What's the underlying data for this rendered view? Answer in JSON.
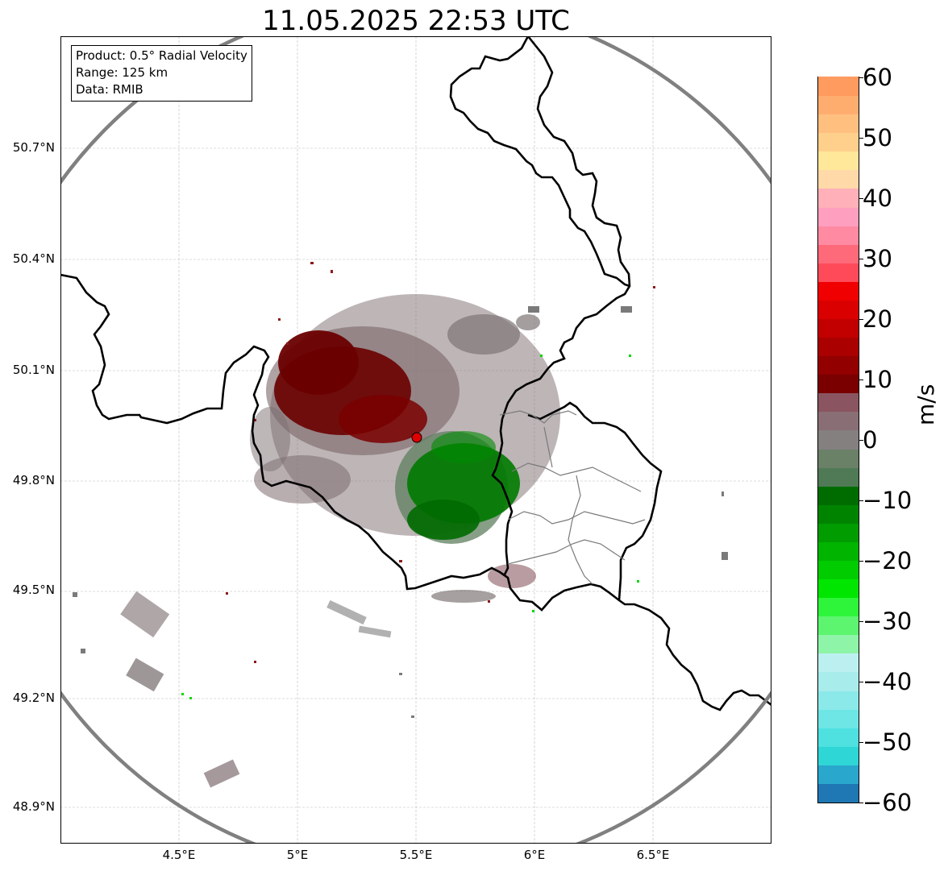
{
  "title": "11.05.2025 22:53 UTC",
  "info_box": {
    "product": "Product: 0.5° Radial Velocity",
    "range": "Range: 125 km",
    "data_source": "Data: RMIB"
  },
  "axes": {
    "y_ticks": [
      "50.7°N",
      "50.4°N",
      "50.1°N",
      "49.8°N",
      "49.5°N",
      "49.2°N",
      "48.9°N"
    ],
    "x_ticks": [
      "4.5°E",
      "5°E",
      "5.5°E",
      "6°E",
      "6.5°E"
    ]
  },
  "colorbar": {
    "label": "m/s",
    "ticks": [
      "60",
      "50",
      "40",
      "30",
      "20",
      "10",
      "0",
      "−10",
      "−20",
      "−30",
      "−40",
      "−50",
      "−60"
    ],
    "min": -60,
    "max": 60,
    "colors": [
      "#1f77b4",
      "#2aa7cc",
      "#2ed6d6",
      "#4fe0e0",
      "#6fe6e6",
      "#8ce9e9",
      "#a8ecec",
      "#bcf0f0",
      "#8ef5a8",
      "#5df56f",
      "#2ef53a",
      "#00e600",
      "#00cc00",
      "#00b400",
      "#009c00",
      "#008400",
      "#006c00",
      "#4f7a55",
      "#6a8067",
      "#848080",
      "#8a6e75",
      "#8a5560",
      "#7a0000",
      "#920000",
      "#aa0000",
      "#c20000",
      "#da0000",
      "#f00000",
      "#ff4a5a",
      "#ff6a7a",
      "#ff8aa2",
      "#ff9fc0",
      "#ffb0b8",
      "#ffd9a8",
      "#ffe89a",
      "#ffcf8c",
      "#ffbf7f",
      "#ffad6f",
      "#ff9b5f"
    ]
  },
  "map": {
    "radar_site": {
      "lon": 5.505,
      "lat": 49.914
    },
    "range_km": 125,
    "lon_range": [
      4.0,
      7.0
    ],
    "lat_range": [
      48.8,
      51.0
    ]
  }
}
